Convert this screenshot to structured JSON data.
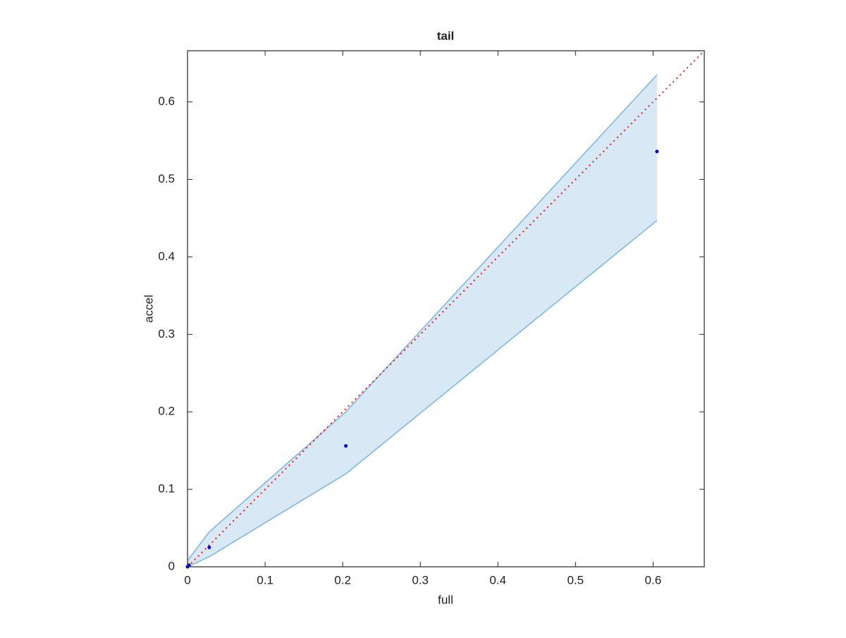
{
  "chart_data": {
    "type": "scatter",
    "title": "tail",
    "x_label": "full",
    "y_label": "accel",
    "xlim": [
      0,
      0.666
    ],
    "ylim": [
      0,
      0.666
    ],
    "xticks": [
      0,
      0.1,
      0.2,
      0.3,
      0.4,
      0.5,
      0.6
    ],
    "yticks": [
      0,
      0.1,
      0.2,
      0.3,
      0.4,
      0.5,
      0.6
    ],
    "points": {
      "x": [
        0,
        0.002,
        0.028,
        0.204,
        0.605
      ],
      "y": [
        0,
        0.002,
        0.025,
        0.156,
        0.536
      ],
      "color": "#0000cc"
    },
    "band": {
      "x": [
        0,
        0.028,
        0.204,
        0.605
      ],
      "upper": [
        0.008,
        0.045,
        0.2,
        0.635
      ],
      "lower": [
        0,
        0.013,
        0.12,
        0.447
      ],
      "color": "#7fb8e0",
      "fill": "#d9e8f5"
    },
    "reference_line": {
      "x": [
        0,
        0.666
      ],
      "y": [
        0,
        0.666
      ],
      "color": "#ff0000"
    }
  }
}
